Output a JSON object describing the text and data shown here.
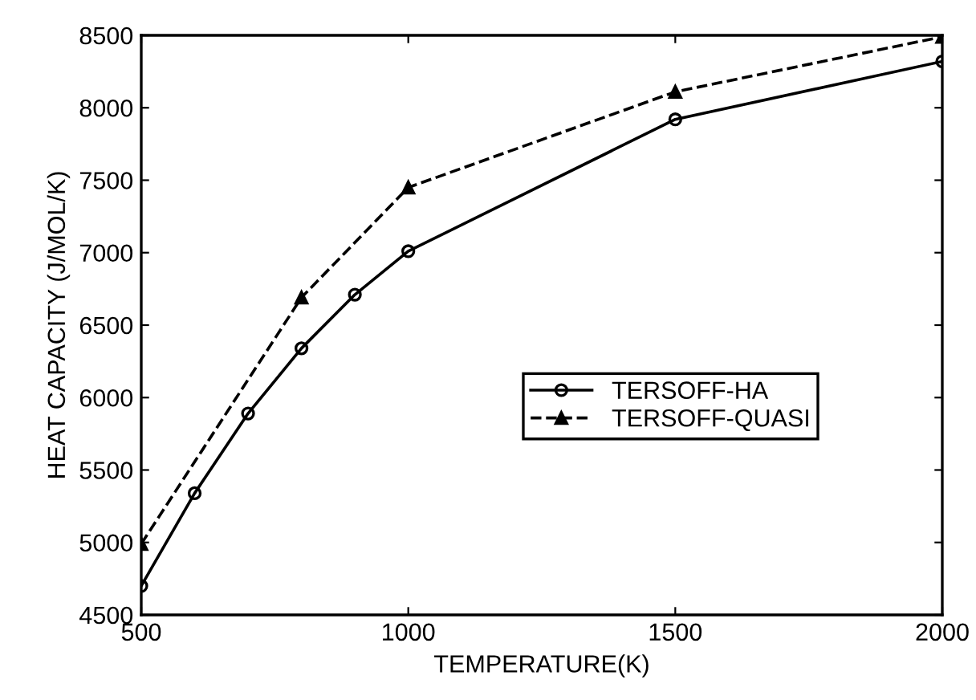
{
  "chart_data": {
    "type": "line",
    "xlabel": "TEMPERATURE(K)",
    "ylabel": "HEAT CAPACITY (J/MOL/K)",
    "xlim": [
      500,
      2000
    ],
    "xticks": [
      500,
      1000,
      1500,
      2000
    ],
    "ylim": [
      4500,
      8500
    ],
    "yticks": [
      4500,
      5000,
      5500,
      6000,
      6500,
      7000,
      7500,
      8000,
      8500
    ],
    "grid": false,
    "legend": "right",
    "series": [
      {
        "name": "TERSOFF-HA",
        "color": "#000000",
        "x": [
          500,
          600,
          700,
          800,
          900,
          1000,
          1500,
          2000
        ],
        "values": [
          4700,
          5340,
          5890,
          6340,
          6710,
          7010,
          7920,
          8320
        ],
        "marker": "circle",
        "line_style": "solid"
      },
      {
        "name": "TERSOFF-QUASI",
        "color": "#000000",
        "x": [
          500,
          800,
          1000,
          1500,
          2000
        ],
        "values": [
          4990,
          6690,
          7450,
          8110,
          8490
        ],
        "marker": "triangle",
        "line_style": "dashed"
      }
    ]
  }
}
